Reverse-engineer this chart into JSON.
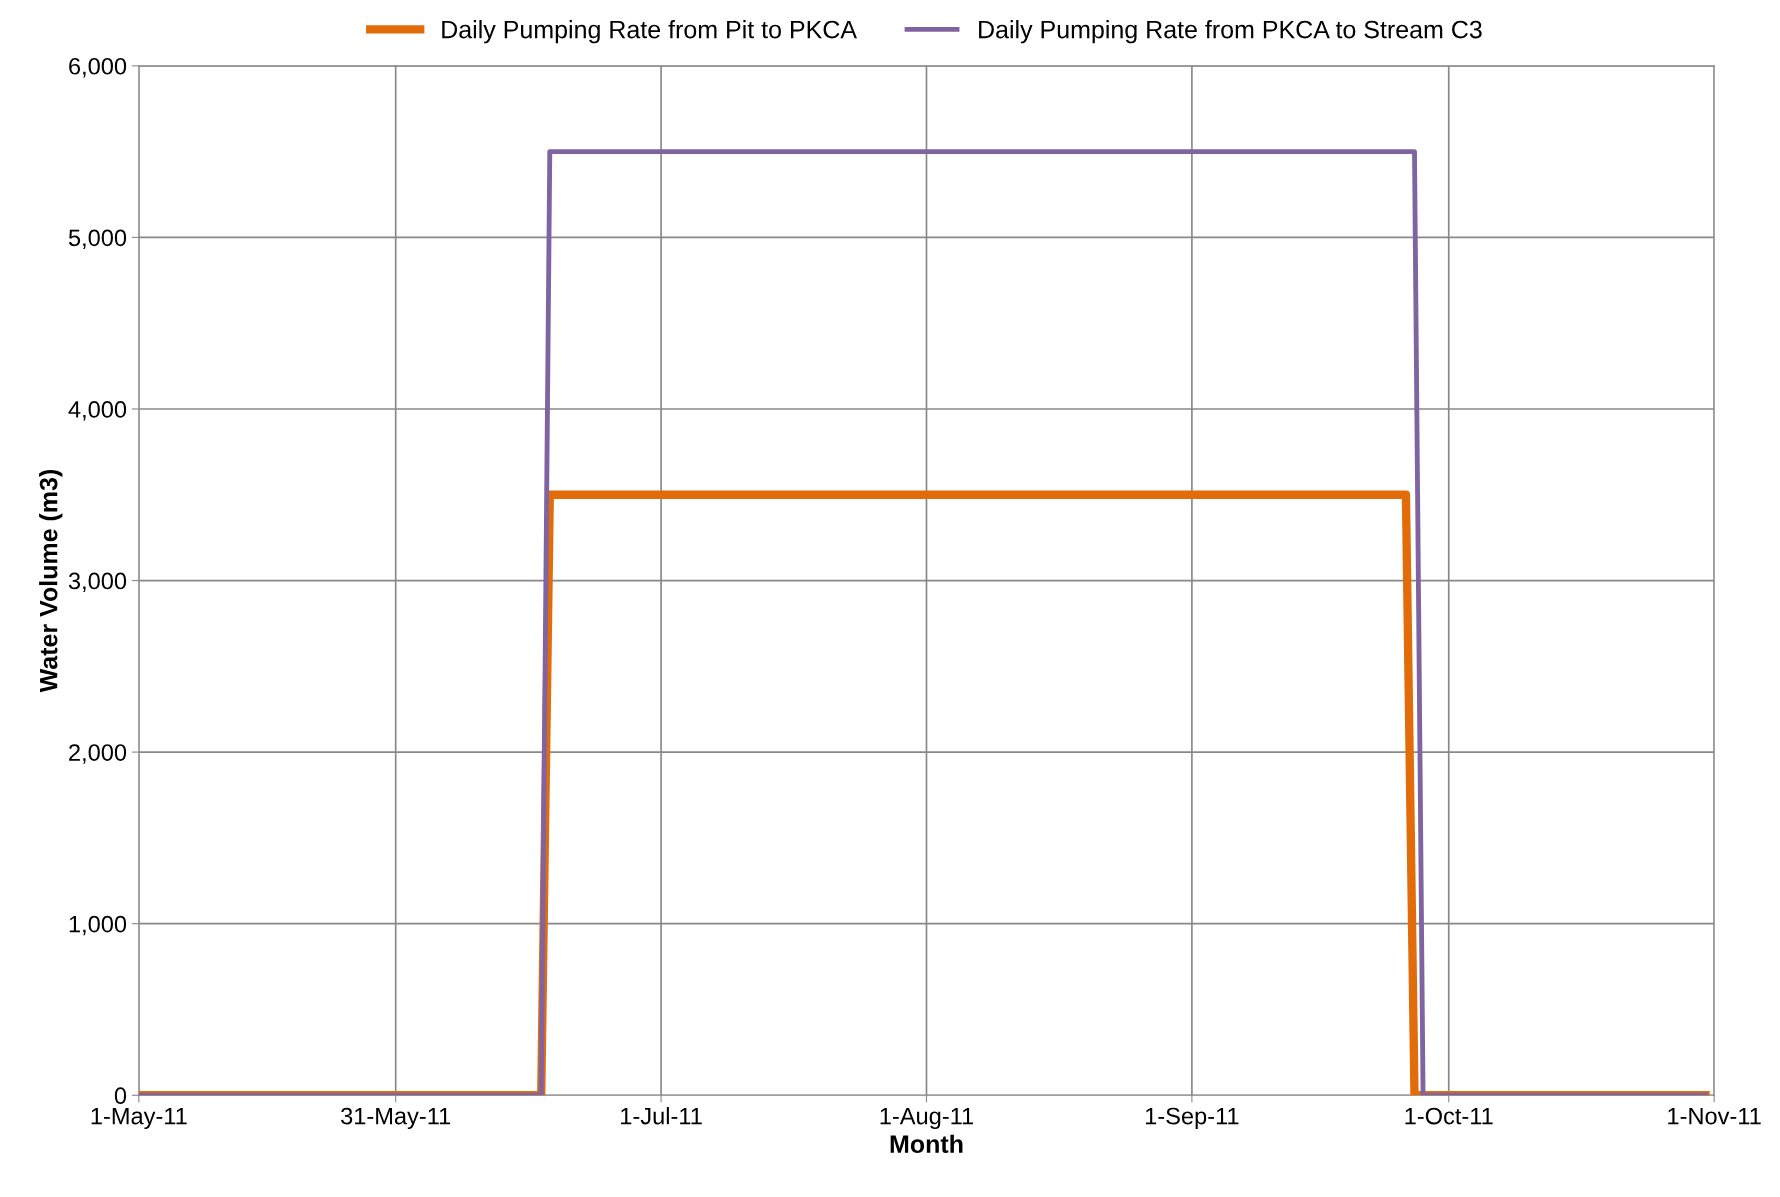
{
  "chart_data": {
    "type": "line",
    "xlabel": "Month",
    "ylabel": "Water Volume (m3)",
    "series": [
      {
        "name": "Daily Pumping Rate from Pit to PKCA",
        "color": "#e36c0a",
        "x": [
          "2011-05-01",
          "2011-06-17",
          "2011-06-18",
          "2011-09-26",
          "2011-09-27",
          "2011-10-31"
        ],
        "values": [
          0,
          0,
          3500,
          3500,
          0,
          0
        ]
      },
      {
        "name": "Daily Pumping Rate from PKCA to Stream C3",
        "color": "#8064a2",
        "x": [
          "2011-05-01",
          "2011-06-17",
          "2011-06-18",
          "2011-09-27",
          "2011-09-28",
          "2011-10-31"
        ],
        "values": [
          0,
          0,
          5500,
          5500,
          0,
          0
        ]
      }
    ],
    "xlim": [
      "2011-05-01",
      "2011-11-01"
    ],
    "xticks": [
      {
        "value": "2011-05-01",
        "label": "1-May-11"
      },
      {
        "value": "2011-05-31",
        "label": "31-May-11"
      },
      {
        "value": "2011-07-01",
        "label": "1-Jul-11"
      },
      {
        "value": "2011-08-01",
        "label": "1-Aug-11"
      },
      {
        "value": "2011-09-01",
        "label": "1-Sep-11"
      },
      {
        "value": "2011-10-01",
        "label": "1-Oct-11"
      },
      {
        "value": "2011-11-01",
        "label": "1-Nov-11"
      }
    ],
    "ylim": [
      0,
      6000
    ],
    "yticks": [
      {
        "value": 0,
        "label": "0"
      },
      {
        "value": 1000,
        "label": "1,000"
      },
      {
        "value": 2000,
        "label": "2,000"
      },
      {
        "value": 3000,
        "label": "3,000"
      },
      {
        "value": 4000,
        "label": "4,000"
      },
      {
        "value": 5000,
        "label": "5,000"
      },
      {
        "value": 6000,
        "label": "6,000"
      }
    ],
    "grid": true,
    "legend": "top",
    "marker": "none",
    "line_style": "solid"
  }
}
